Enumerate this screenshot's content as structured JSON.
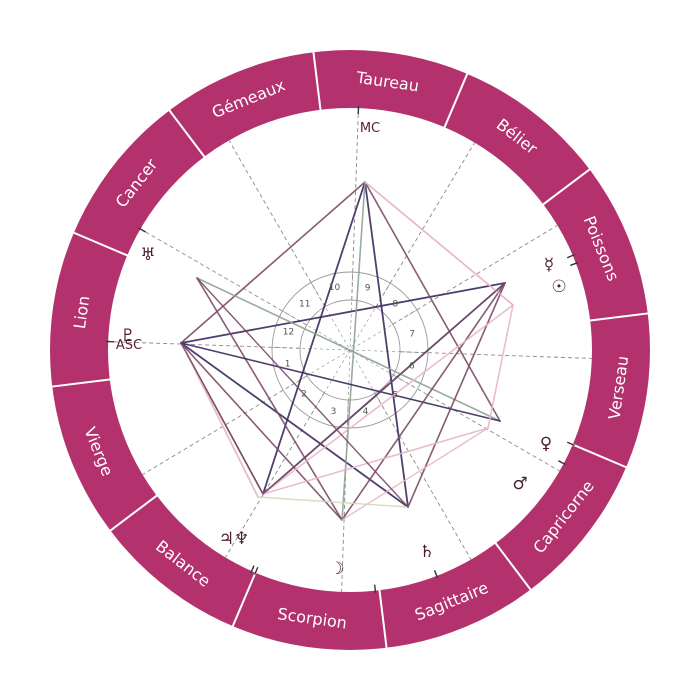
{
  "colors": {
    "ring": "#b3326e",
    "ring_divider": "#ffffff",
    "dashed_line": "#8a8a8a",
    "inner_circle": "#999999",
    "tick": "#333333",
    "aspect_dark": "#3c2a5e",
    "aspect_mauve": "#7a4a65",
    "aspect_pink": "#e7b6c9",
    "aspect_grey_green": "#8ea392",
    "aspect_pale_green": "#cfd9b8",
    "text_dark": "#4a1f33"
  },
  "signs": [
    {
      "name": "Gémeaux"
    },
    {
      "name": "Taureau"
    },
    {
      "name": "Bélier"
    },
    {
      "name": "Poissons"
    },
    {
      "name": "Verseau"
    },
    {
      "name": "Capricorne"
    },
    {
      "name": "Sagittaire"
    },
    {
      "name": "Scorpion"
    },
    {
      "name": "Balance"
    },
    {
      "name": "Vierge"
    },
    {
      "name": "Lion"
    },
    {
      "name": "Cancer"
    }
  ],
  "houses": [
    "1",
    "2",
    "3",
    "4",
    "5",
    "6",
    "7",
    "8",
    "9",
    "10",
    "11",
    "12"
  ],
  "axes": {
    "mc": "MC",
    "asc": "ASC"
  },
  "planets": [
    {
      "id": "uranus",
      "glyph": "♅"
    },
    {
      "id": "pluto",
      "glyph": "♇"
    },
    {
      "id": "mercury",
      "glyph": "☿"
    },
    {
      "id": "sun",
      "glyph": "☉"
    },
    {
      "id": "venus",
      "glyph": "♀"
    },
    {
      "id": "mars",
      "glyph": "♂"
    },
    {
      "id": "saturn",
      "glyph": "♄"
    },
    {
      "id": "moon",
      "glyph": "☽"
    },
    {
      "id": "jupiter-neptune",
      "glyph": "♃♆"
    }
  ]
}
